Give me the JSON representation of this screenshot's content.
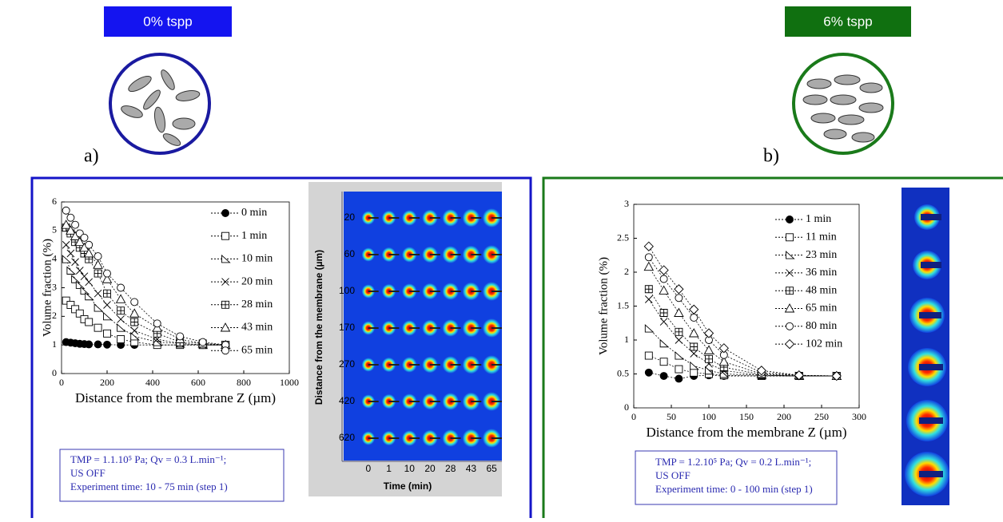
{
  "panels": [
    {
      "badge": "0% tspp",
      "letter": "a)",
      "info": [
        "TMP = 1.1.10⁵ Pa; Qv = 0.3 L.min⁻¹;",
        "US OFF",
        "Experiment time:  10 - 75 min (step 1)"
      ]
    },
    {
      "badge": "6% tspp",
      "letter": "b)",
      "info": [
        "TMP = 1.2.10⁵ Pa; Qv = 0.2 L.min⁻¹;",
        "US OFF",
        "Experiment time:  0 - 100 min (step 1)"
      ]
    }
  ],
  "heatmap": {
    "y_title": "Distance from the membrane (µm)",
    "x_title": "Time (min)",
    "y_labels": [
      "20",
      "60",
      "100",
      "170",
      "270",
      "420",
      "620"
    ],
    "x_labels": [
      "0",
      "1",
      "10",
      "20",
      "28",
      "43",
      "65"
    ]
  },
  "chart_data": [
    {
      "type": "line",
      "x_label": "Distance from the membrane Z (µm)",
      "y_label": "Volume fraction (%)",
      "xlim": [
        0,
        1000
      ],
      "ylim": [
        0,
        6
      ],
      "xticks": [
        0,
        200,
        400,
        600,
        800,
        1000
      ],
      "yticks": [
        0,
        1,
        2,
        3,
        4,
        5,
        6
      ],
      "x": [
        20,
        40,
        60,
        80,
        100,
        120,
        160,
        200,
        260,
        320,
        420,
        520,
        620,
        720
      ],
      "series": [
        {
          "name": "0 min",
          "color": "#000000",
          "marker": "filled-circle",
          "values": [
            1.1,
            1.08,
            1.06,
            1.04,
            1.03,
            1.02,
            1.02,
            1.01,
            1.0,
            1.0,
            1.0,
            1.0,
            1.0,
            1.0
          ]
        },
        {
          "name": "1 min",
          "color": "#000000",
          "marker": "square",
          "values": [
            2.55,
            2.4,
            2.25,
            2.1,
            1.9,
            1.8,
            1.6,
            1.4,
            1.2,
            1.1,
            1.0,
            1.0,
            1.0,
            1.0
          ]
        },
        {
          "name": "10 min",
          "color": "#000000",
          "marker": "triangle-right",
          "values": [
            4.0,
            3.6,
            3.3,
            3.1,
            2.9,
            2.7,
            2.3,
            2.0,
            1.6,
            1.3,
            1.1,
            1.05,
            1.0,
            1.0
          ]
        },
        {
          "name": "20 min",
          "color": "#000000",
          "marker": "cross",
          "values": [
            4.5,
            4.2,
            3.9,
            3.6,
            3.4,
            3.2,
            2.8,
            2.4,
            1.9,
            1.5,
            1.2,
            1.05,
            1.0,
            1.0
          ]
        },
        {
          "name": "28 min",
          "color": "#000000",
          "marker": "square-plus",
          "values": [
            5.1,
            4.9,
            4.6,
            4.4,
            4.2,
            4.0,
            3.5,
            2.8,
            2.2,
            1.8,
            1.4,
            1.1,
            1.05,
            1.0
          ]
        },
        {
          "name": "43 min",
          "color": "#000000",
          "marker": "triangle",
          "values": [
            5.2,
            5.0,
            4.8,
            4.6,
            4.4,
            4.2,
            3.8,
            3.3,
            2.6,
            2.1,
            1.6,
            1.2,
            1.05,
            1.0
          ]
        },
        {
          "name": "65 min",
          "color": "#000000",
          "marker": "circle",
          "values": [
            5.7,
            5.45,
            5.2,
            4.9,
            4.75,
            4.5,
            4.1,
            3.5,
            3.0,
            2.5,
            1.75,
            1.3,
            1.1,
            1.0
          ]
        }
      ]
    },
    {
      "type": "line",
      "x_label": "Distance from the membrane Z (µm)",
      "y_label": "Volume fraction (%)",
      "xlim": [
        0,
        300
      ],
      "ylim": [
        0,
        3
      ],
      "xticks": [
        0,
        50,
        100,
        150,
        200,
        250,
        300
      ],
      "yticks": [
        0,
        0.5,
        1,
        1.5,
        2,
        2.5,
        3
      ],
      "x": [
        20,
        40,
        60,
        80,
        100,
        120,
        170,
        220,
        270
      ],
      "series": [
        {
          "name": "1 min",
          "color": "#000000",
          "marker": "filled-circle",
          "values": [
            0.52,
            0.47,
            0.43,
            0.47,
            0.48,
            0.47,
            0.47,
            0.47,
            0.47
          ]
        },
        {
          "name": "11 min",
          "color": "#000000",
          "marker": "square",
          "values": [
            0.77,
            0.68,
            0.57,
            0.52,
            0.5,
            0.48,
            0.47,
            0.47,
            0.47
          ]
        },
        {
          "name": "23 min",
          "color": "#000000",
          "marker": "triangle-right",
          "values": [
            1.17,
            0.95,
            0.77,
            0.62,
            0.55,
            0.5,
            0.48,
            0.47,
            0.47
          ]
        },
        {
          "name": "36 min",
          "color": "#000000",
          "marker": "cross",
          "values": [
            1.6,
            1.27,
            1.0,
            0.8,
            0.65,
            0.55,
            0.48,
            0.47,
            0.47
          ]
        },
        {
          "name": "48 min",
          "color": "#000000",
          "marker": "square-plus",
          "values": [
            1.75,
            1.4,
            1.12,
            0.9,
            0.72,
            0.6,
            0.49,
            0.47,
            0.47
          ]
        },
        {
          "name": "65 min",
          "color": "#000000",
          "marker": "triangle",
          "values": [
            2.08,
            1.73,
            1.4,
            1.1,
            0.85,
            0.68,
            0.5,
            0.48,
            0.47
          ]
        },
        {
          "name": "80 min",
          "color": "#000000",
          "marker": "circle",
          "values": [
            2.22,
            1.9,
            1.62,
            1.33,
            1.0,
            0.78,
            0.52,
            0.48,
            0.47
          ]
        },
        {
          "name": "102 min",
          "color": "#000000",
          "marker": "diamond",
          "values": [
            2.38,
            2.03,
            1.75,
            1.45,
            1.1,
            0.88,
            0.55,
            0.48,
            0.47
          ]
        }
      ]
    }
  ]
}
